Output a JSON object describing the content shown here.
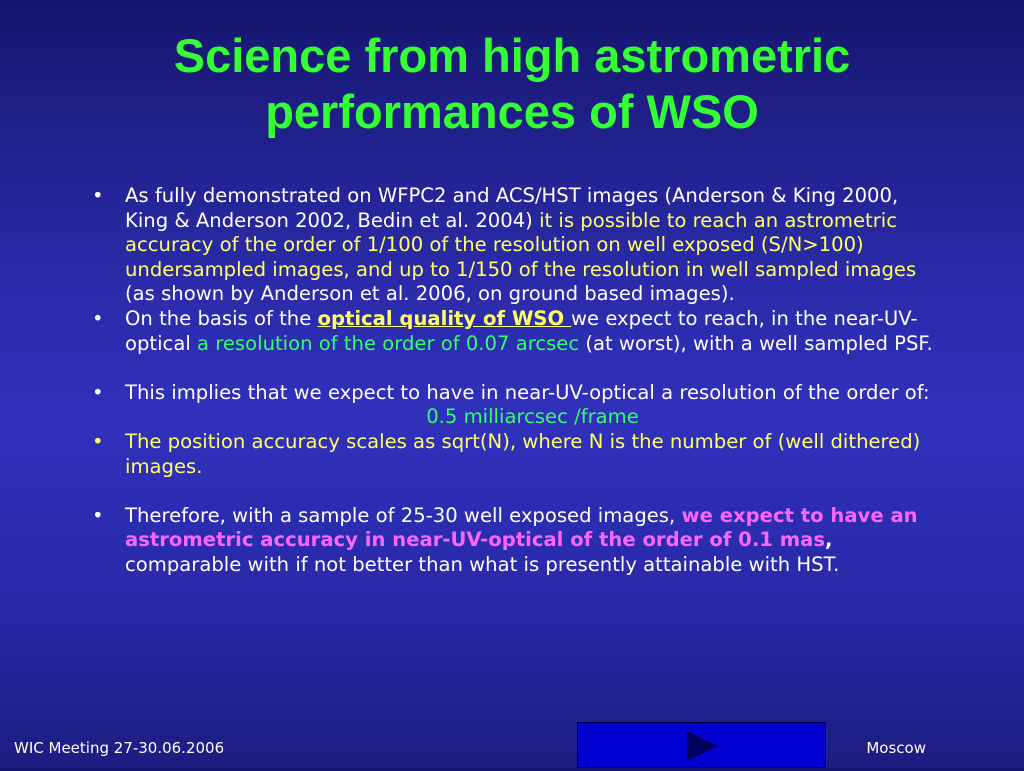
{
  "title": {
    "line1": "Science from high astrometric",
    "line2": "performances of WSO"
  },
  "bullets": [
    {
      "runs": [
        {
          "text": "As fully demonstrated on WFPC2 and ACS/HST images (Anderson & King 2000, King & Anderson 2002, Bedin et al. 2004) ",
          "color": "#ffffff"
        },
        {
          "text": "it is possible to reach an astrometric accuracy of the order of 1/100 of the resolution on well exposed (S/N>100) undersampled images, and up to 1/150 of the resolution in well sampled images",
          "color": "#ffff66"
        },
        {
          "text": " (as shown by Anderson et al. 2006, on ground based images).",
          "color": "#ffffff"
        }
      ]
    },
    {
      "runs": [
        {
          "text": "On the basis of the ",
          "color": "#ffffff"
        },
        {
          "text": "optical quality of WSO ",
          "color": "#ffff66",
          "bold": true,
          "underline": true
        },
        {
          "text": "we expect to reach, in the near-UV-optical ",
          "color": "#ffffff"
        },
        {
          "text": "a resolution of the order of 0.07 arcsec",
          "color": "#33ff66"
        },
        {
          "text": " (at worst), with a well sampled PSF.",
          "color": "#ffffff"
        }
      ],
      "space_after": true
    },
    {
      "runs": [
        {
          "text": "This implies that we expect to have in near-UV-optical a resolution of the order of:",
          "color": "#ffffff"
        }
      ],
      "centered": {
        "text": "0.5 milliarcsec /frame",
        "color": "#33ff66"
      }
    },
    {
      "bullet_color": "#ffff66",
      "runs": [
        {
          "text": "The position accuracy scales as sqrt(N), where N is the number of (well dithered) images.",
          "color": "#ffff66"
        }
      ],
      "space_after": true
    },
    {
      "runs": [
        {
          "text": "Therefore, with a sample of 25-30 well exposed images, ",
          "color": "#ffffff"
        },
        {
          "text": "we expect to have an astrometric accuracy in near-UV-optical of the order of 0.1 mas",
          "color": "#ff66ff",
          "bold": true
        },
        {
          "text": ",",
          "color": "#ffffff",
          "bold": true
        },
        {
          "text": " comparable with if not better than what is presently attainable with HST.",
          "color": "#ffffff"
        }
      ]
    }
  ],
  "footer": {
    "left": "WIC Meeting 27-30.06.2006",
    "right": "Moscow"
  }
}
